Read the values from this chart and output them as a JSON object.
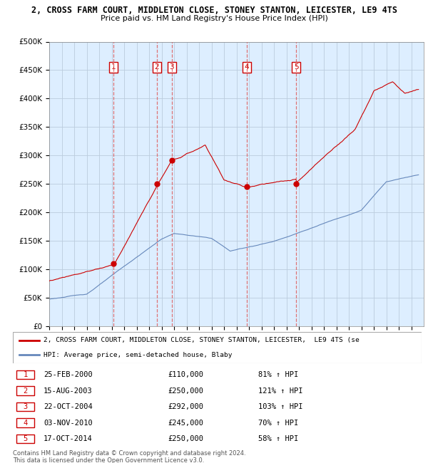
{
  "title": "2, CROSS FARM COURT, MIDDLETON CLOSE, STONEY STANTON, LEICESTER, LE9 4TS",
  "subtitle": "Price paid vs. HM Land Registry's House Price Index (HPI)",
  "ylim": [
    0,
    500000
  ],
  "yticks": [
    0,
    50000,
    100000,
    150000,
    200000,
    250000,
    300000,
    350000,
    400000,
    450000,
    500000
  ],
  "ytick_labels": [
    "£0",
    "£50K",
    "£100K",
    "£150K",
    "£200K",
    "£250K",
    "£300K",
    "£350K",
    "£400K",
    "£450K",
    "£500K"
  ],
  "red_line_color": "#cc0000",
  "blue_line_color": "#6688bb",
  "vline_color": "#dd6666",
  "chart_bg": "#ddeeff",
  "grid_color": "#bbccdd",
  "transactions": [
    {
      "date": 2000.15,
      "price": 110000,
      "label": "1"
    },
    {
      "date": 2003.62,
      "price": 250000,
      "label": "2"
    },
    {
      "date": 2004.81,
      "price": 292000,
      "label": "3"
    },
    {
      "date": 2010.84,
      "price": 245000,
      "label": "4"
    },
    {
      "date": 2014.79,
      "price": 250000,
      "label": "5"
    }
  ],
  "table": [
    {
      "num": "1",
      "date": "25-FEB-2000",
      "price": "£110,000",
      "hpi": "81% ↑ HPI"
    },
    {
      "num": "2",
      "date": "15-AUG-2003",
      "price": "£250,000",
      "hpi": "121% ↑ HPI"
    },
    {
      "num": "3",
      "date": "22-OCT-2004",
      "price": "£292,000",
      "hpi": "103% ↑ HPI"
    },
    {
      "num": "4",
      "date": "03-NOV-2010",
      "price": "£245,000",
      "hpi": "70% ↑ HPI"
    },
    {
      "num": "5",
      "date": "17-OCT-2014",
      "price": "£250,000",
      "hpi": "58% ↑ HPI"
    }
  ],
  "legend_red": "2, CROSS FARM COURT, MIDDLETON CLOSE, STONEY STANTON, LEICESTER,  LE9 4TS (se",
  "legend_blue": "HPI: Average price, semi-detached house, Blaby",
  "footer": "Contains HM Land Registry data © Crown copyright and database right 2024.\nThis data is licensed under the Open Government Licence v3.0.",
  "xmin": 1995.0,
  "xmax": 2025.0
}
